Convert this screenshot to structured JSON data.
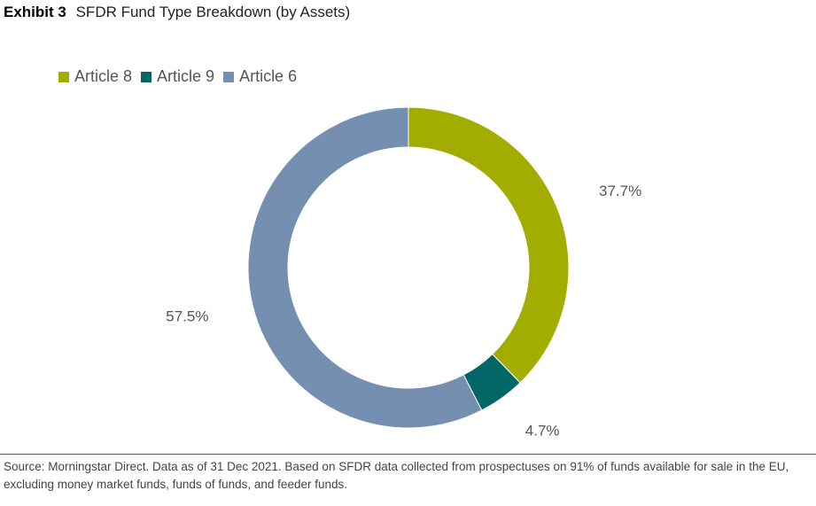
{
  "header": {
    "exhibit_label": "Exhibit 3",
    "title": "SFDR Fund Type Breakdown (by Assets)"
  },
  "legend": {
    "items": [
      {
        "label": "Article 8",
        "color": "#a3ad00"
      },
      {
        "label": "Article 9",
        "color": "#006666"
      },
      {
        "label": "Article 6",
        "color": "#748fb0"
      }
    ]
  },
  "chart_data": {
    "type": "pie",
    "style": "donut",
    "title": "SFDR Fund Type Breakdown (by Assets)",
    "categories": [
      "Article 8",
      "Article 9",
      "Article 6"
    ],
    "values": [
      37.7,
      4.7,
      57.5
    ],
    "data_labels": [
      "37.7%",
      "4.7%",
      "57.5%"
    ],
    "colors": [
      "#a3ad00",
      "#006666",
      "#748fb0"
    ],
    "legend_position": "top-left"
  },
  "footer": {
    "source": "Source: Morningstar Direct. Data as of 31 Dec 2021. Based on SFDR data collected from prospectuses on 91% of funds available for sale in the EU, excluding money market funds, funds of funds, and feeder funds."
  }
}
